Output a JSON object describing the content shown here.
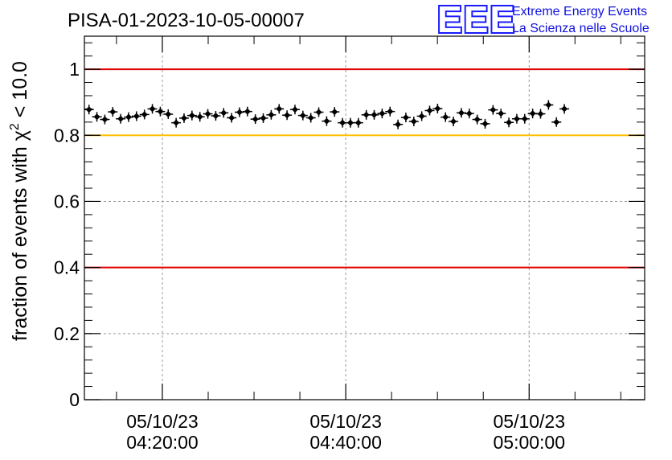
{
  "chart_data": {
    "type": "scatter",
    "title": "PISA-01-2023-10-05-00007",
    "ylabel_prefix": "fraction of events with ",
    "ylabel_symbol": "χ",
    "ylabel_superscript": "2",
    "ylabel_suffix": " < 10.0",
    "ylim": [
      0,
      1.1
    ],
    "yticks": [
      {
        "value": 0,
        "label": "0"
      },
      {
        "value": 0.2,
        "label": "0.2"
      },
      {
        "value": 0.4,
        "label": "0.4"
      },
      {
        "value": 0.6,
        "label": "0.6"
      },
      {
        "value": 0.8,
        "label": "0.8"
      },
      {
        "value": 1,
        "label": "1"
      }
    ],
    "xlim_minutes": [
      11.5,
      72.6
    ],
    "xticks": [
      {
        "minute": 20,
        "date": "05/10/23",
        "time": "04:20:00"
      },
      {
        "minute": 40,
        "date": "05/10/23",
        "time": "04:40:00"
      },
      {
        "minute": 60,
        "date": "05/10/23",
        "time": "05:00:00"
      }
    ],
    "grid": true,
    "reference_lines": [
      {
        "y": 1.0,
        "color": "#e00000"
      },
      {
        "y": 0.8,
        "color": "#ffc000"
      },
      {
        "y": 0.4,
        "color": "#e00000"
      }
    ],
    "series": [
      {
        "marker_color": "#000000",
        "x_start_minute": 12.0,
        "x_step_minutes": 0.864,
        "values": [
          0.878,
          0.856,
          0.848,
          0.871,
          0.85,
          0.855,
          0.858,
          0.863,
          0.88,
          0.872,
          0.864,
          0.838,
          0.852,
          0.86,
          0.856,
          0.865,
          0.859,
          0.868,
          0.853,
          0.87,
          0.872,
          0.849,
          0.852,
          0.862,
          0.88,
          0.861,
          0.878,
          0.86,
          0.853,
          0.87,
          0.843,
          0.871,
          0.838,
          0.838,
          0.838,
          0.862,
          0.862,
          0.866,
          0.872,
          0.833,
          0.854,
          0.842,
          0.858,
          0.875,
          0.881,
          0.855,
          0.842,
          0.868,
          0.866,
          0.848,
          0.835,
          0.877,
          0.866,
          0.839,
          0.85,
          0.85,
          0.866,
          0.865,
          0.892,
          0.84,
          0.88
        ]
      }
    ]
  },
  "logo": {
    "mark": "EEE",
    "line1": "Extreme Energy Events",
    "line2": "La Scienza nelle Scuole"
  }
}
